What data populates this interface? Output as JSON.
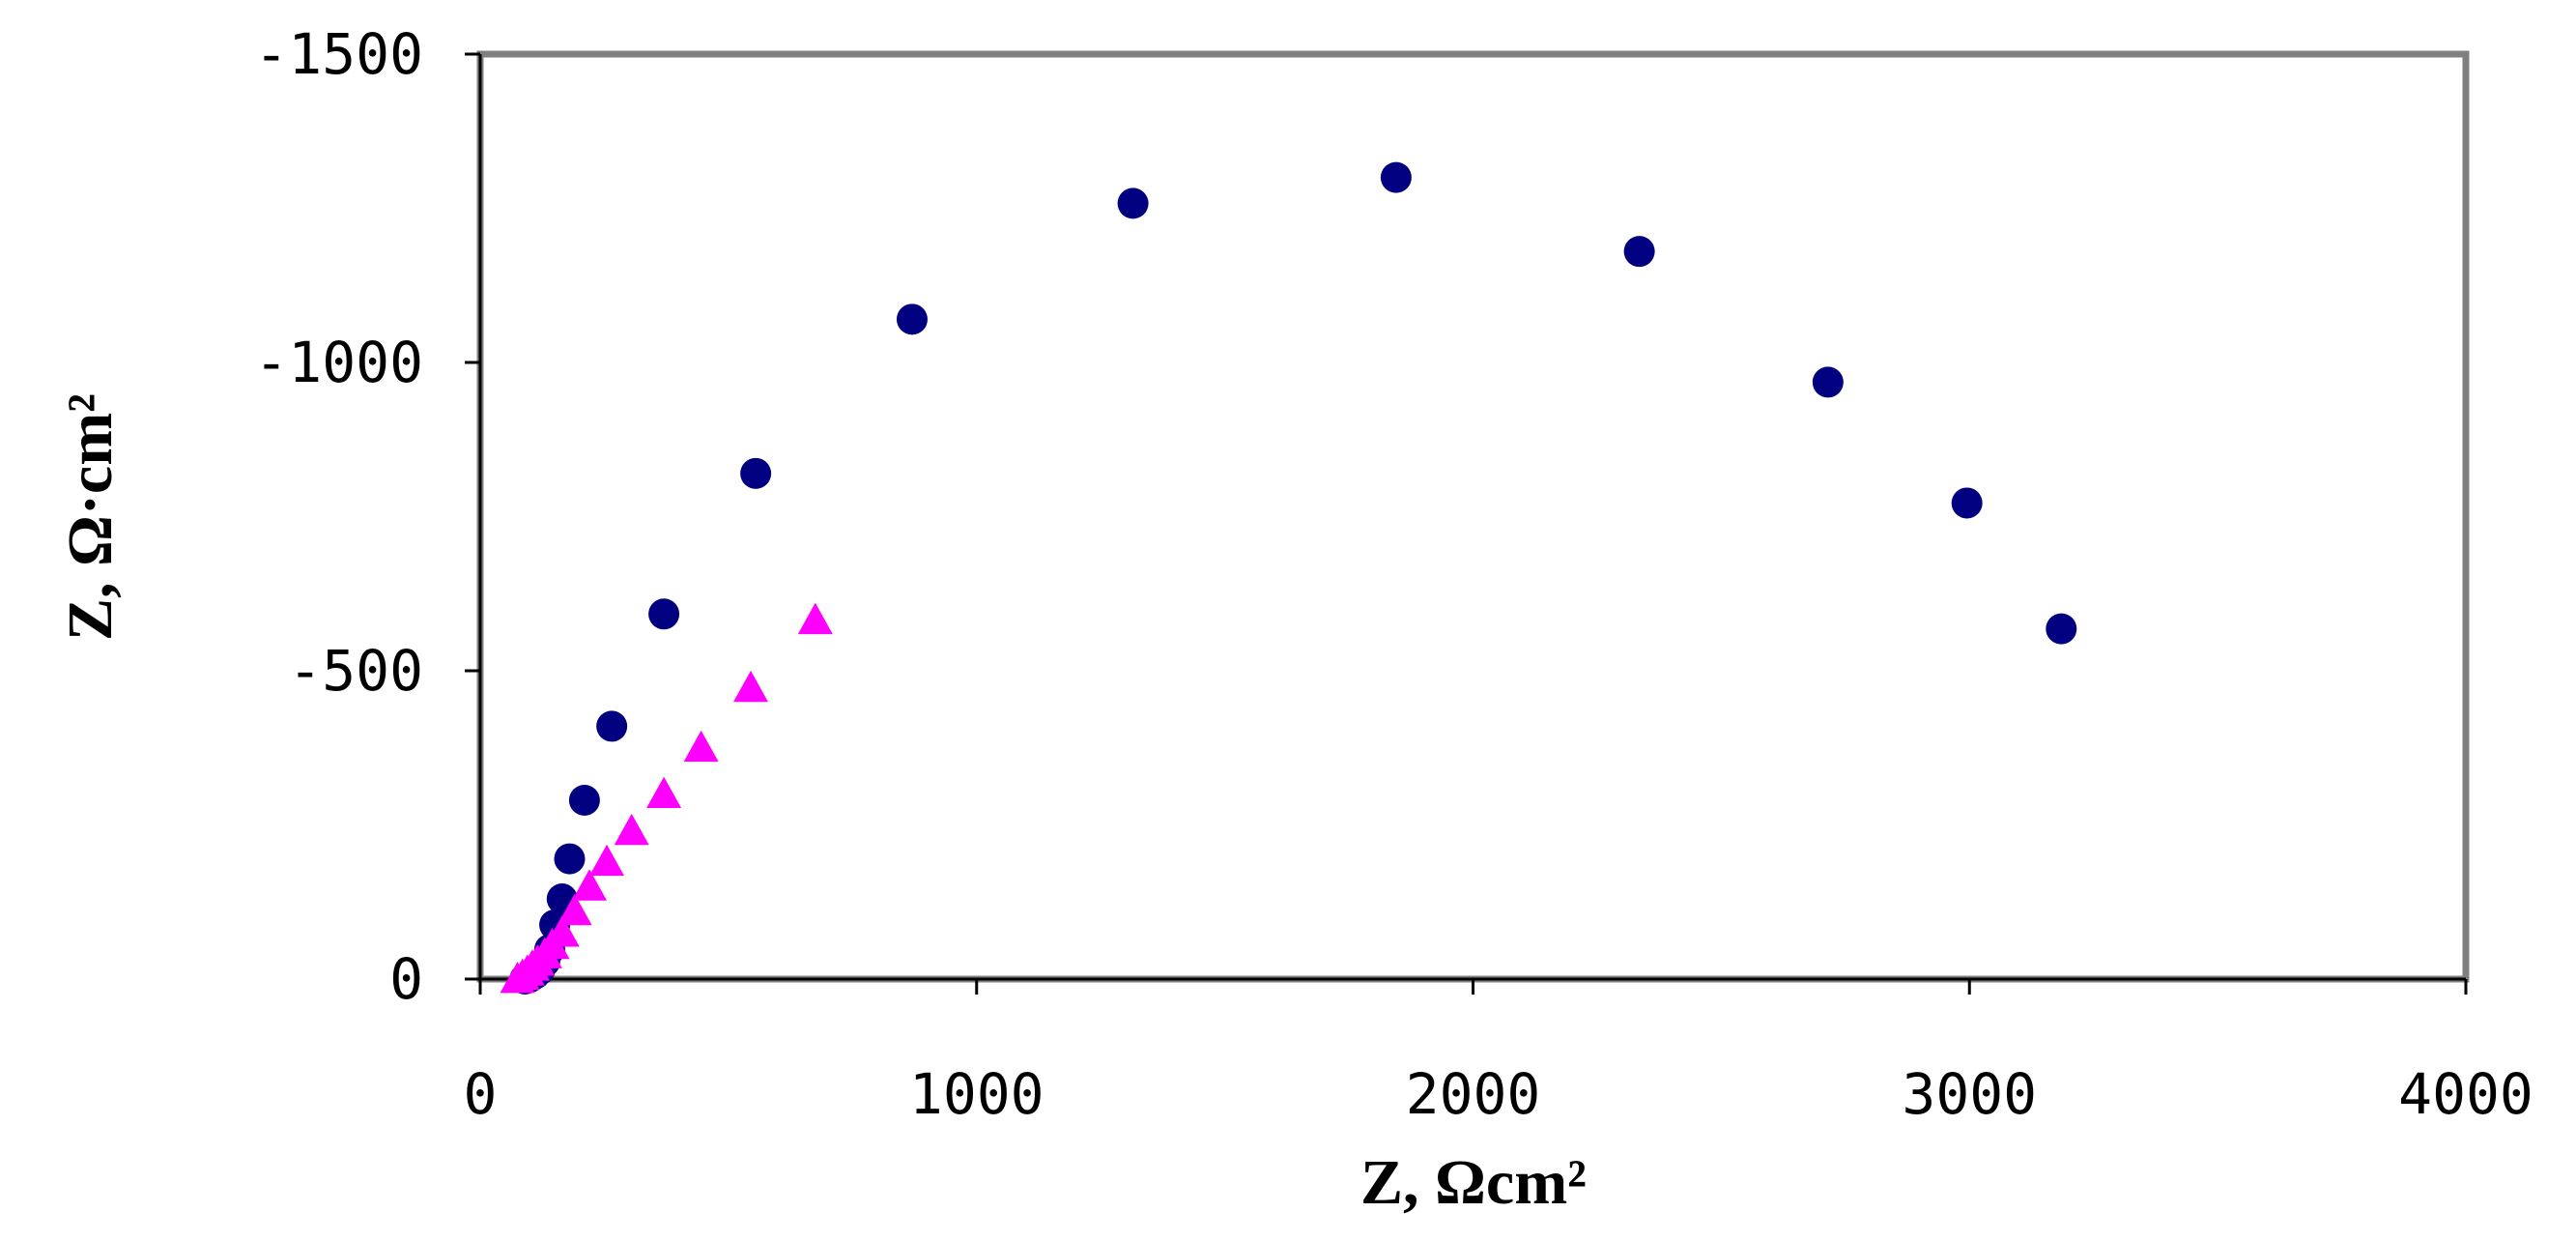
{
  "chart_data": {
    "type": "scatter",
    "xlabel": "Z, Ωcm²",
    "ylabel": "Z, Ω·cm²",
    "xlim": [
      0,
      4000
    ],
    "ylim": [
      0,
      -1500
    ],
    "xticks": [
      "0",
      "1000",
      "2000",
      "3000",
      "4000"
    ],
    "yticks": [
      "0",
      "-500",
      "-1000",
      "-1500"
    ],
    "grid": false,
    "legend": "none",
    "series": [
      {
        "marker": "circle",
        "color": "#000080",
        "x": [
          90,
          100,
          110,
          120,
          130,
          140,
          150,
          165,
          180,
          210,
          265,
          370,
          555,
          870,
          1315,
          1845,
          2335,
          2715,
          2995,
          3185
        ],
        "y": [
          0,
          -3,
          -8,
          -15,
          -28,
          -48,
          -88,
          -130,
          -195,
          -290,
          -410,
          -592,
          -820,
          -1070,
          -1258,
          -1300,
          -1180,
          -968,
          -772,
          -568
        ]
      },
      {
        "marker": "triangle",
        "color": "#FF00FF",
        "x": [
          75,
          85,
          95,
          105,
          115,
          130,
          145,
          165,
          190,
          220,
          255,
          305,
          370,
          445,
          545,
          675
        ],
        "y": [
          0,
          -5,
          -12,
          -20,
          -28,
          -40,
          -55,
          -75,
          -110,
          -150,
          -190,
          -240,
          -300,
          -375,
          -472,
          -582
        ]
      }
    ]
  }
}
